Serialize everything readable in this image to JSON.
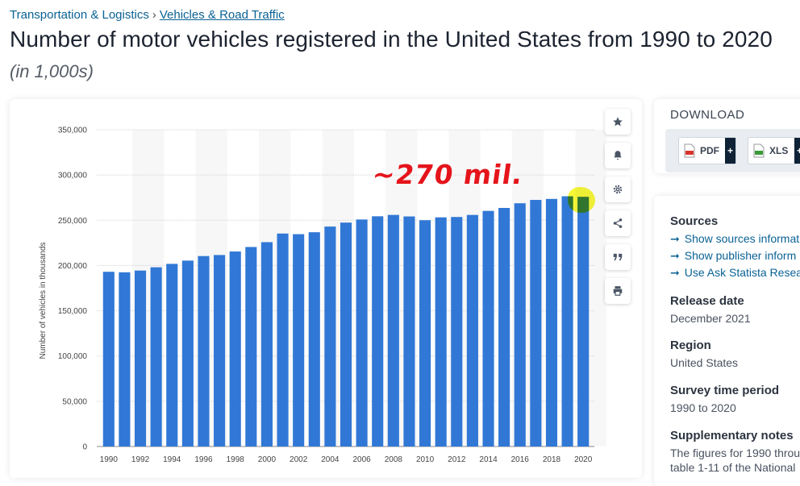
{
  "breadcrumb": {
    "parent": "Transportation & Logistics",
    "separator": "›",
    "current": "Vehicles & Road Traffic"
  },
  "title": "Number of motor vehicles registered in the United States from 1990 to 2020",
  "subtitle": "(in 1,000s)",
  "annotation": "~270 mil.",
  "tools": [
    "star-icon",
    "bell-icon",
    "gear-icon",
    "share-icon",
    "quote-icon",
    "print-icon"
  ],
  "download": {
    "title": "DOWNLOAD",
    "pdf": "PDF",
    "xls": "XLS",
    "plus": "+"
  },
  "info": {
    "sources_heading": "Sources",
    "source_links": [
      "Show sources informat",
      "Show publisher inform",
      "Use Ask Statista Resea"
    ],
    "release_heading": "Release date",
    "release_value": "December 2021",
    "region_heading": "Region",
    "region_value": "United States",
    "period_heading": "Survey time period",
    "period_value": "1990 to 2020",
    "supp_heading": "Supplementary notes",
    "supp_value": "The figures for 1990 throu",
    "supp_value2": "table 1-11 of the National"
  },
  "colors": {
    "bar": "#3178d6",
    "grid": "#d3d3d3",
    "band": "#f7f7f7",
    "annotation": "#e5141b",
    "highlight": "#f5f514"
  },
  "chart_data": {
    "type": "bar",
    "ylabel": "Number of vehicles in thousands",
    "xlabel": "",
    "ylim": [
      0,
      350000
    ],
    "yticks": [
      0,
      50000,
      100000,
      150000,
      200000,
      250000,
      300000,
      350000
    ],
    "ytick_labels": [
      "0",
      "50,000",
      "100,000",
      "150,000",
      "200,000",
      "250,000",
      "300,000",
      "350,000"
    ],
    "categories": [
      "1990",
      "1991",
      "1992",
      "1993",
      "1994",
      "1995",
      "1996",
      "1997",
      "1998",
      "1999",
      "2000",
      "2001",
      "2002",
      "2003",
      "2004",
      "2005",
      "2006",
      "2007",
      "2008",
      "2009",
      "2010",
      "2011",
      "2012",
      "2013",
      "2014",
      "2015",
      "2016",
      "2017",
      "2018",
      "2019",
      "2020"
    ],
    "xtick_labels": [
      "1990",
      "1992",
      "1994",
      "1996",
      "1998",
      "2000",
      "2002",
      "2004",
      "2006",
      "2008",
      "2010",
      "2012",
      "2014",
      "2016",
      "2018",
      "2020"
    ],
    "values": [
      193057,
      192497,
      194427,
      198045,
      201802,
      205427,
      210441,
      211580,
      215496,
      220461,
      225821,
      235331,
      234624,
      236760,
      243023,
      247421,
      250844,
      254403,
      255918,
      254213,
      250070,
      253215,
      253639,
      255876,
      260351,
      263610,
      268800,
      272480,
      273602,
      276491,
      275924
    ]
  }
}
